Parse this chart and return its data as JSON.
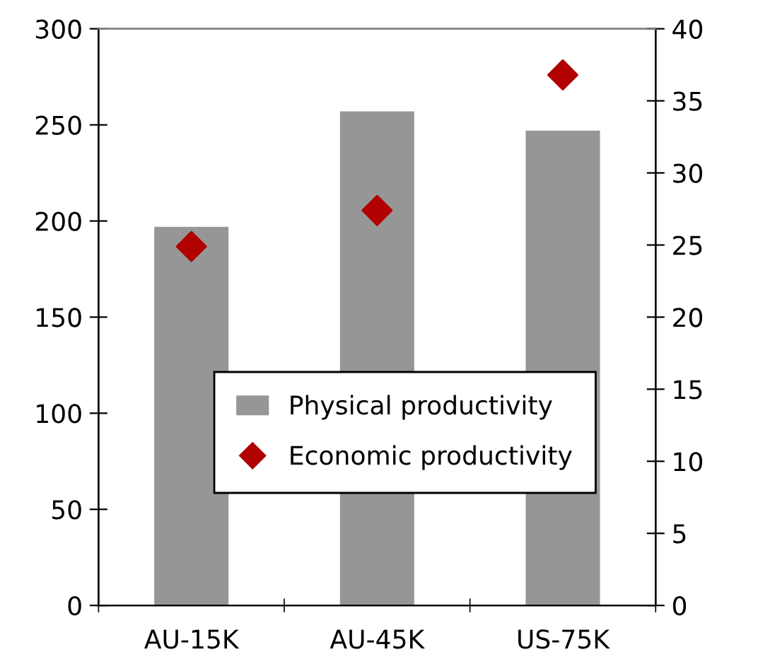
{
  "chart_data": {
    "type": "bar",
    "categories": [
      "AU-15K",
      "AU-45K",
      "US-75K"
    ],
    "series": [
      {
        "name": "Physical productivity",
        "color": "#969696",
        "values": [
          197,
          257,
          247
        ]
      },
      {
        "name": "Economic productivity",
        "type": "scatter",
        "axis": "y2",
        "color": "#b00000",
        "marker": "diamond",
        "values": [
          24.9,
          27.4,
          36.8
        ]
      }
    ],
    "ylim": [
      0,
      300
    ],
    "yticks": [
      0,
      50,
      100,
      150,
      200,
      250,
      300
    ],
    "y2lim": [
      0,
      40
    ],
    "y2ticks": [
      0,
      5,
      10,
      15,
      20,
      25,
      30,
      35,
      40
    ],
    "grid": false,
    "legend": "center"
  }
}
